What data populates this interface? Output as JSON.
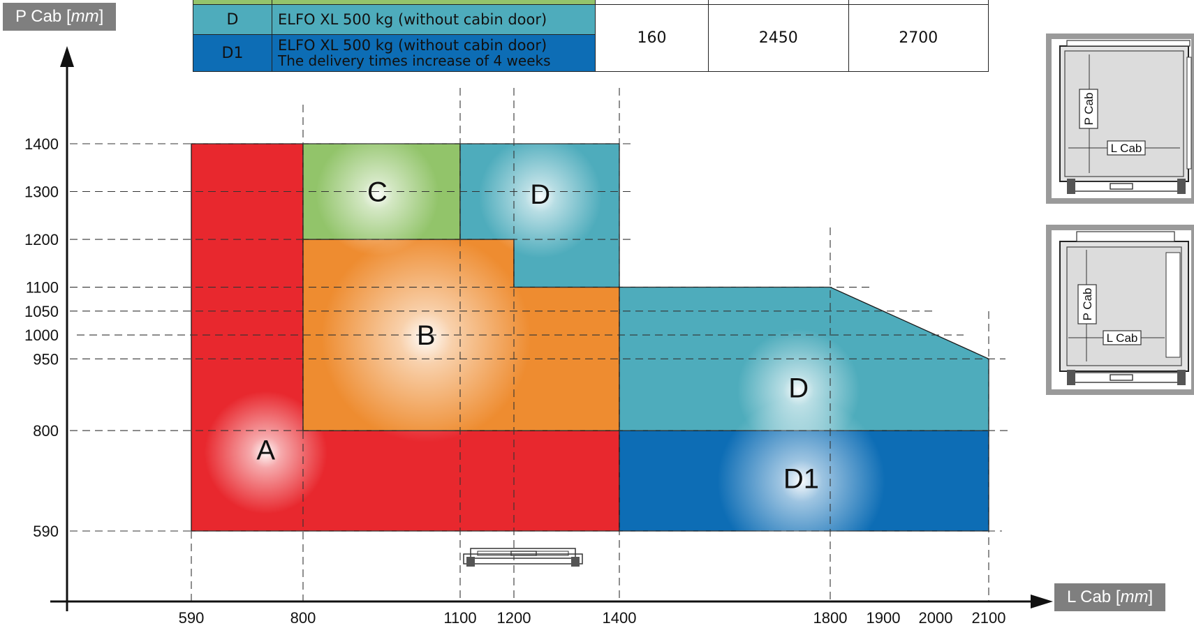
{
  "chart_data": {
    "type": "area",
    "xlabel": "L Cab",
    "xlabel_unit": "mm",
    "ylabel": "P Cab",
    "ylabel_unit": "mm",
    "xlim": [
      480,
      2240
    ],
    "ylim": [
      480,
      1490
    ],
    "x_ticks": [
      590,
      800,
      1100,
      1200,
      1400,
      1800,
      1900,
      2000,
      2100
    ],
    "y_ticks": [
      590,
      800,
      950,
      1000,
      1050,
      1100,
      1200,
      1300,
      1400
    ],
    "grid": "dashed",
    "regions": [
      {
        "label": "A",
        "color": "#e8282e",
        "polygon": [
          [
            590,
            590
          ],
          [
            1400,
            590
          ],
          [
            1400,
            800
          ],
          [
            800,
            800
          ],
          [
            800,
            1400
          ],
          [
            590,
            1400
          ]
        ],
        "label_at": [
          730,
          760
        ]
      },
      {
        "label": "B",
        "color": "#ee8c30",
        "polygon": [
          [
            800,
            800
          ],
          [
            1400,
            800
          ],
          [
            1400,
            1100
          ],
          [
            1200,
            1100
          ],
          [
            1200,
            1200
          ],
          [
            800,
            1200
          ]
        ],
        "label_at": [
          1035,
          1000
        ]
      },
      {
        "label": "C",
        "color": "#92c46a",
        "polygon": [
          [
            800,
            1200
          ],
          [
            1100,
            1200
          ],
          [
            1100,
            1400
          ],
          [
            800,
            1400
          ]
        ],
        "label_at": [
          942,
          1300
        ]
      },
      {
        "label": "D",
        "color": "#4eacbc",
        "polygon": [
          [
            1100,
            1200
          ],
          [
            1200,
            1200
          ],
          [
            1200,
            1100
          ],
          [
            1400,
            1100
          ],
          [
            1400,
            1400
          ],
          [
            1100,
            1400
          ]
        ],
        "label_at": [
          1250,
          1295
        ]
      },
      {
        "label": "D",
        "color": "#4eacbc",
        "polygon": [
          [
            1400,
            800
          ],
          [
            2100,
            800
          ],
          [
            2100,
            950
          ],
          [
            1800,
            1100
          ],
          [
            1400,
            1100
          ]
        ],
        "label_at": [
          1740,
          890
        ]
      },
      {
        "label": "D1",
        "color": "#0d6db5",
        "polygon": [
          [
            1400,
            590
          ],
          [
            2100,
            590
          ],
          [
            2100,
            800
          ],
          [
            1400,
            800
          ]
        ],
        "label_at": [
          1745,
          700
        ]
      }
    ]
  },
  "legend_table": {
    "rows": [
      {
        "code": "",
        "description": [
          ""
        ],
        "values": [
          "",
          "",
          ""
        ],
        "color": "#94c46b"
      },
      {
        "code": "D",
        "description": [
          "ELFO XL 500 kg (without cabin door)"
        ],
        "color": "#4eacbc"
      },
      {
        "code": "D1",
        "description": [
          "ELFO XL 500 kg (without cabin door)",
          "The delivery times increase of 4 weeks"
        ],
        "color": "#0d6db5"
      }
    ],
    "merged_values": [
      "160",
      "2450",
      "2700"
    ]
  },
  "diagram_labels": {
    "p_cab": "P Cab",
    "l_cab": "L Cab"
  }
}
